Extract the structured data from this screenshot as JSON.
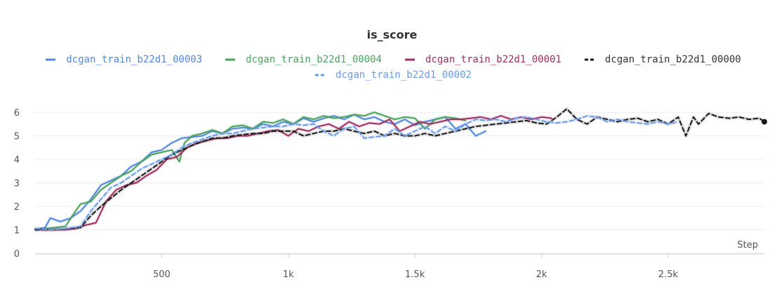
{
  "chart_data": {
    "type": "line",
    "title": "is_score",
    "xlabel": "Step",
    "ylabel": "",
    "xlim": [
      0,
      2880
    ],
    "ylim": [
      0,
      6.6
    ],
    "xticks": [
      500,
      1000,
      1500,
      2000,
      2500
    ],
    "xtick_labels": [
      "500",
      "1k",
      "1.5k",
      "2k",
      "2.5k"
    ],
    "yticks": [
      0,
      1,
      2,
      3,
      4,
      5,
      6
    ],
    "ytick_labels": [
      "0",
      "1",
      "2",
      "3",
      "4",
      "5",
      "6"
    ],
    "grid": true,
    "legend_position": "top-center",
    "series": [
      {
        "name": "dcgan_train_b22d1_00003",
        "color": "#5387dd",
        "dash": "solid",
        "x": [
          0,
          40,
          60,
          100,
          140,
          180,
          220,
          260,
          300,
          340,
          380,
          420,
          460,
          500,
          540,
          580,
          620,
          660,
          700,
          740,
          780,
          820,
          860,
          900,
          940,
          980,
          1020,
          1060,
          1100,
          1140,
          1180,
          1220,
          1260,
          1300,
          1340,
          1380,
          1420,
          1460,
          1500,
          1540,
          1580,
          1620,
          1660,
          1700,
          1740,
          1780
        ],
        "y": [
          1.0,
          1.1,
          1.5,
          1.35,
          1.5,
          1.8,
          2.3,
          2.9,
          3.1,
          3.3,
          3.7,
          3.9,
          4.3,
          4.4,
          4.7,
          4.9,
          4.95,
          5.0,
          5.2,
          5.1,
          5.3,
          5.35,
          5.3,
          5.5,
          5.4,
          5.6,
          5.5,
          5.75,
          5.6,
          5.75,
          5.85,
          5.7,
          5.9,
          5.7,
          5.8,
          5.6,
          5.5,
          5.7,
          5.45,
          5.6,
          5.7,
          5.8,
          5.3,
          5.5,
          5.0,
          5.2
        ]
      },
      {
        "name": "dcgan_train_b22d1_00004",
        "color": "#4ca15f",
        "dash": "solid",
        "x": [
          0,
          40,
          80,
          120,
          160,
          180,
          220,
          260,
          300,
          340,
          380,
          420,
          460,
          500,
          540,
          570,
          590,
          620,
          660,
          700,
          740,
          780,
          820,
          860,
          900,
          940,
          980,
          1020,
          1060,
          1100,
          1140,
          1180,
          1220,
          1260,
          1300,
          1340,
          1380,
          1420,
          1460,
          1500,
          1540,
          1580,
          1620,
          1660,
          1700
        ],
        "y": [
          1.0,
          1.05,
          1.1,
          1.15,
          1.8,
          2.1,
          2.2,
          2.7,
          3.0,
          3.3,
          3.5,
          3.9,
          4.2,
          4.3,
          4.4,
          3.9,
          4.7,
          5.0,
          5.1,
          5.25,
          5.1,
          5.4,
          5.45,
          5.3,
          5.6,
          5.55,
          5.7,
          5.5,
          5.8,
          5.7,
          5.85,
          5.75,
          5.8,
          5.9,
          5.85,
          6.0,
          5.85,
          5.7,
          5.8,
          5.75,
          5.3,
          5.7,
          5.8,
          5.75,
          5.65
        ]
      },
      {
        "name": "dcgan_train_b22d1_00001",
        "color": "#9e2f60",
        "dash": "solid",
        "x": [
          0,
          40,
          80,
          120,
          160,
          200,
          240,
          280,
          320,
          360,
          400,
          440,
          480,
          520,
          560,
          600,
          640,
          680,
          720,
          760,
          800,
          840,
          880,
          920,
          960,
          1000,
          1040,
          1080,
          1120,
          1160,
          1200,
          1240,
          1280,
          1320,
          1360,
          1400,
          1440,
          1480,
          1520,
          1560,
          1600,
          1640,
          1680,
          1720,
          1760,
          1800,
          1840,
          1880,
          1920,
          1960,
          2000,
          2040
        ],
        "y": [
          1.05,
          1.0,
          1.0,
          1.0,
          1.05,
          1.2,
          1.3,
          2.2,
          2.7,
          2.9,
          3.0,
          3.3,
          3.55,
          4.0,
          4.1,
          4.5,
          4.7,
          4.8,
          4.9,
          4.9,
          5.0,
          5.0,
          5.1,
          5.2,
          5.25,
          5.0,
          5.3,
          5.2,
          5.4,
          5.5,
          5.3,
          5.6,
          5.4,
          5.55,
          5.5,
          5.7,
          5.2,
          5.4,
          5.6,
          5.5,
          5.6,
          5.7,
          5.7,
          5.75,
          5.8,
          5.7,
          5.85,
          5.7,
          5.8,
          5.7,
          5.8,
          5.75
        ]
      },
      {
        "name": "dcgan_train_b22d1_00000",
        "color": "#1a1a1a",
        "dash": "dashed",
        "x": [
          0,
          60,
          120,
          180,
          220,
          260,
          300,
          340,
          380,
          420,
          460,
          500,
          540,
          580,
          620,
          660,
          700,
          740,
          780,
          820,
          860,
          900,
          940,
          980,
          1020,
          1060,
          1100,
          1140,
          1180,
          1220,
          1260,
          1300,
          1340,
          1380,
          1420,
          1460,
          1500,
          1540,
          1580,
          1620,
          1660,
          1700,
          1740,
          1780,
          1820,
          1860,
          1900,
          1940,
          1980,
          2020,
          2060,
          2100,
          2140,
          2180,
          2220,
          2260,
          2300,
          2340,
          2380,
          2420,
          2460,
          2500,
          2540,
          2570,
          2600,
          2620,
          2660,
          2700,
          2740,
          2780,
          2820,
          2860,
          2880
        ],
        "y": [
          1.0,
          1.0,
          1.05,
          1.1,
          1.6,
          2.0,
          2.35,
          2.7,
          3.0,
          3.3,
          3.6,
          3.9,
          4.2,
          4.4,
          4.6,
          4.75,
          4.9,
          4.9,
          5.0,
          5.05,
          5.1,
          5.1,
          5.2,
          5.2,
          5.2,
          5.0,
          5.1,
          5.2,
          5.2,
          5.3,
          5.2,
          5.1,
          5.2,
          5.0,
          5.1,
          5.0,
          5.0,
          5.1,
          5.0,
          5.1,
          5.2,
          5.3,
          5.4,
          5.45,
          5.5,
          5.55,
          5.6,
          5.65,
          5.55,
          5.5,
          5.8,
          6.15,
          5.7,
          5.5,
          5.8,
          5.7,
          5.6,
          5.7,
          5.75,
          5.6,
          5.7,
          5.5,
          5.8,
          5.0,
          5.8,
          5.5,
          5.95,
          5.8,
          5.75,
          5.8,
          5.7,
          5.75,
          5.6
        ]
      },
      {
        "name": "dcgan_train_b22d1_00002",
        "color": "#6b9be8",
        "dash": "dashed",
        "x": [
          0,
          60,
          120,
          180,
          220,
          260,
          300,
          340,
          380,
          420,
          460,
          500,
          540,
          580,
          620,
          660,
          700,
          740,
          780,
          820,
          860,
          900,
          940,
          980,
          1020,
          1060,
          1100,
          1140,
          1180,
          1220,
          1260,
          1300,
          1340,
          1380,
          1420,
          1460,
          1500,
          1540,
          1580,
          1620,
          1660,
          1700,
          1740,
          1780,
          1820,
          1860,
          1900,
          1940,
          1980,
          2020,
          2060,
          2100,
          2140,
          2180,
          2220,
          2260,
          2300,
          2340,
          2380,
          2420,
          2460,
          2500,
          2540
        ],
        "y": [
          1.05,
          1.0,
          1.05,
          1.15,
          1.8,
          2.3,
          2.8,
          3.0,
          3.3,
          3.6,
          3.8,
          4.0,
          4.2,
          4.5,
          4.7,
          4.85,
          5.0,
          5.1,
          5.1,
          5.2,
          5.3,
          5.35,
          5.4,
          5.4,
          5.5,
          5.45,
          5.5,
          5.2,
          5.0,
          5.3,
          5.4,
          4.9,
          4.95,
          5.0,
          5.3,
          5.0,
          5.2,
          5.4,
          5.1,
          5.4,
          5.2,
          5.5,
          5.7,
          5.65,
          5.7,
          5.6,
          5.75,
          5.8,
          5.7,
          5.6,
          5.55,
          5.6,
          5.7,
          5.85,
          5.8,
          5.6,
          5.7,
          5.6,
          5.55,
          5.5,
          5.6,
          5.5,
          5.6
        ]
      }
    ]
  }
}
